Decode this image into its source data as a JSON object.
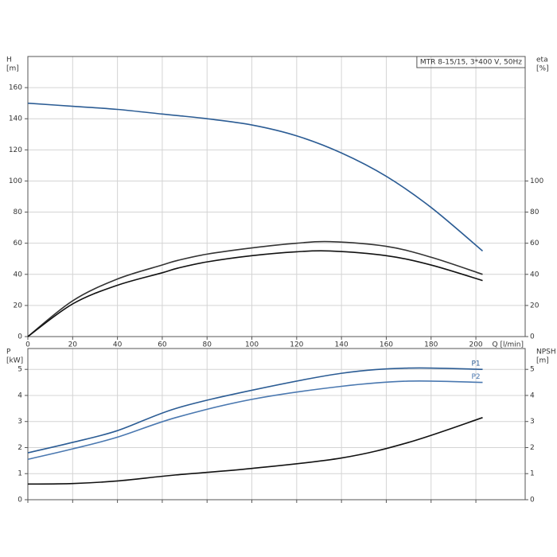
{
  "chart_data": [
    {
      "type": "line",
      "annotation": "MTR 8-15/15, 3*400 V, 50Hz",
      "ylabel": [
        "H",
        "[m]"
      ],
      "y2label": [
        "eta",
        "[%]"
      ],
      "xlabel": "Q [l/min]",
      "xlim": [
        0,
        222
      ],
      "xticks": [
        0,
        20,
        40,
        60,
        80,
        100,
        120,
        140,
        160,
        180,
        200
      ],
      "show_xtick_labels": true,
      "ylim": [
        0,
        180
      ],
      "yticks": [
        0,
        20,
        40,
        60,
        80,
        100,
        120,
        140,
        160
      ],
      "y2lim": [
        0,
        180
      ],
      "y2ticks": [
        0,
        20,
        40,
        60,
        80,
        100
      ],
      "grid": true,
      "series": [
        {
          "color": "#2b5c94",
          "axis": "y",
          "x": [
            0,
            20,
            40,
            60,
            67,
            80,
            100,
            120,
            140,
            160,
            180,
            203
          ],
          "values": [
            150,
            148,
            146,
            143,
            142,
            140,
            136,
            129,
            118,
            103,
            83,
            55
          ]
        },
        {
          "color": "#333333",
          "axis": "y2",
          "x": [
            0,
            20,
            40,
            60,
            67,
            80,
            100,
            120,
            135,
            160,
            180,
            203
          ],
          "values": [
            0,
            23,
            37,
            46,
            49,
            53,
            57,
            60,
            61,
            58,
            51,
            40
          ]
        },
        {
          "color": "#111111",
          "axis": "y2",
          "x": [
            0,
            20,
            40,
            60,
            67,
            80,
            100,
            120,
            135,
            160,
            180,
            203
          ],
          "values": [
            0,
            21,
            33,
            41,
            44,
            48,
            52,
            54.5,
            55,
            52,
            46,
            36
          ]
        }
      ]
    },
    {
      "type": "line",
      "ylabel": [
        "P",
        "[kW]"
      ],
      "y2label": [
        "NPSH",
        "[m]"
      ],
      "xlim": [
        0,
        222
      ],
      "xticks": [
        0,
        20,
        40,
        60,
        80,
        100,
        120,
        140,
        160,
        180,
        200
      ],
      "show_xtick_labels": false,
      "ylim": [
        0,
        5.8
      ],
      "yticks": [
        0,
        1,
        2,
        3,
        4,
        5
      ],
      "y2lim": [
        0,
        5.8
      ],
      "y2ticks": [
        0,
        1,
        2,
        3,
        4,
        5
      ],
      "grid": true,
      "series": [
        {
          "name": "P1",
          "color": "#2b5c94",
          "axis": "y",
          "x": [
            0,
            20,
            40,
            66,
            100,
            140,
            170,
            203
          ],
          "values": [
            1.8,
            2.2,
            2.65,
            3.5,
            4.2,
            4.85,
            5.05,
            5.0
          ]
        },
        {
          "name": "P2",
          "color": "#4a78b0",
          "axis": "y",
          "x": [
            0,
            20,
            40,
            66,
            100,
            140,
            170,
            203
          ],
          "values": [
            1.55,
            1.95,
            2.4,
            3.15,
            3.85,
            4.35,
            4.55,
            4.5
          ]
        },
        {
          "color": "#111111",
          "axis": "y2",
          "x": [
            0,
            20,
            40,
            66,
            100,
            140,
            170,
            203
          ],
          "values": [
            0.6,
            0.62,
            0.72,
            0.95,
            1.2,
            1.6,
            2.2,
            3.15
          ]
        }
      ]
    }
  ]
}
